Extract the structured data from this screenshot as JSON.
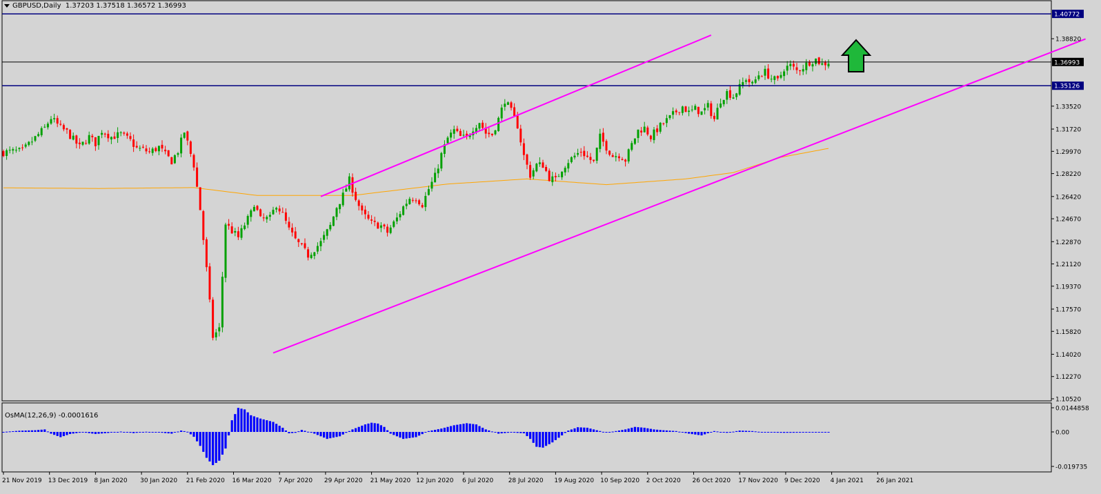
{
  "header": {
    "symbol": "GBPUSD,Daily",
    "ohlc": "1.37203 1.37518 1.36572 1.36993"
  },
  "colors": {
    "background": "#d4d4d4",
    "bull": "#00a000",
    "bear": "#ff0000",
    "ma": "#ffa500",
    "channel": "#ff00ff",
    "hline": "#000080",
    "price_line": "#000000",
    "osma": "#0000ff",
    "arrow_fill": "#1fb83a"
  },
  "chart_data": {
    "type": "line",
    "title": "GBPUSD,Daily",
    "price_axis": {
      "ticks": [
        "1.38820",
        "1.36993",
        "1.35126",
        "1.33520",
        "1.31720",
        "1.29970",
        "1.28220",
        "1.26420",
        "1.24670",
        "1.22870",
        "1.21120",
        "1.19370",
        "1.17570",
        "1.15820",
        "1.14020",
        "1.12270",
        "1.10520"
      ],
      "ylim": [
        1.1052,
        1.4105
      ]
    },
    "time_axis": {
      "labels": [
        "21 Nov 2019",
        "13 Dec 2019",
        "8 Jan 2020",
        "30 Jan 2020",
        "21 Feb 2020",
        "16 Mar 2020",
        "7 Apr 2020",
        "29 Apr 2020",
        "21 May 2020",
        "12 Jun 2020",
        "6 Jul 2020",
        "28 Jul 2020",
        "19 Aug 2020",
        "10 Sep 2020",
        "2 Oct 2020",
        "26 Oct 2020",
        "17 Nov 2020",
        "9 Dec 2020",
        "4 Jan 2021",
        "26 Jan 2021"
      ]
    },
    "horizontal_levels": [
      {
        "value": 1.40772,
        "label": "1.40772",
        "kind": "resistance"
      },
      {
        "value": 1.36993,
        "label": "1.36993",
        "kind": "current"
      },
      {
        "value": 1.35126,
        "label": "1.35126",
        "kind": "support"
      }
    ],
    "price_anchors": [
      [
        0,
        1.299
      ],
      [
        6,
        1.3
      ],
      [
        13,
        1.318
      ],
      [
        15,
        1.326
      ],
      [
        18,
        1.318
      ],
      [
        20,
        1.315
      ],
      [
        24,
        1.303
      ],
      [
        27,
        1.311
      ],
      [
        29,
        1.306
      ],
      [
        31,
        1.316
      ],
      [
        34,
        1.311
      ],
      [
        37,
        1.313
      ],
      [
        40,
        1.308
      ],
      [
        42,
        1.302
      ],
      [
        44,
        1.301
      ],
      [
        46,
        1.299
      ],
      [
        49,
        1.303
      ],
      [
        51,
        1.297
      ],
      [
        53,
        1.292
      ],
      [
        55,
        1.3
      ],
      [
        57,
        1.315
      ],
      [
        60,
        1.289
      ],
      [
        62,
        1.254
      ],
      [
        64,
        1.207
      ],
      [
        66,
        1.154
      ],
      [
        68,
        1.16
      ],
      [
        70,
        1.243
      ],
      [
        72,
        1.237
      ],
      [
        74,
        1.232
      ],
      [
        76,
        1.242
      ],
      [
        78,
        1.251
      ],
      [
        79,
        1.259
      ],
      [
        81,
        1.246
      ],
      [
        84,
        1.247
      ],
      [
        86,
        1.258
      ],
      [
        88,
        1.25
      ],
      [
        90,
        1.238
      ],
      [
        92,
        1.23
      ],
      [
        94,
        1.224
      ],
      [
        96,
        1.218
      ],
      [
        98,
        1.223
      ],
      [
        100,
        1.228
      ],
      [
        103,
        1.241
      ],
      [
        105,
        1.256
      ],
      [
        107,
        1.265
      ],
      [
        109,
        1.277
      ],
      [
        111,
        1.263
      ],
      [
        113,
        1.251
      ],
      [
        116,
        1.243
      ],
      [
        119,
        1.241
      ],
      [
        121,
        1.236
      ],
      [
        124,
        1.247
      ],
      [
        126,
        1.256
      ],
      [
        128,
        1.263
      ],
      [
        130,
        1.263
      ],
      [
        132,
        1.258
      ],
      [
        134,
        1.27
      ],
      [
        136,
        1.28
      ],
      [
        138,
        1.297
      ],
      [
        140,
        1.31
      ],
      [
        142,
        1.316
      ],
      [
        144,
        1.311
      ],
      [
        146,
        1.31
      ],
      [
        148,
        1.318
      ],
      [
        150,
        1.323
      ],
      [
        152,
        1.314
      ],
      [
        154,
        1.313
      ],
      [
        156,
        1.325
      ],
      [
        158,
        1.34
      ],
      [
        160,
        1.331
      ],
      [
        162,
        1.32
      ],
      [
        164,
        1.296
      ],
      [
        166,
        1.281
      ],
      [
        168,
        1.289
      ],
      [
        170,
        1.289
      ],
      [
        172,
        1.279
      ],
      [
        174,
        1.277
      ],
      [
        176,
        1.286
      ],
      [
        178,
        1.292
      ],
      [
        180,
        1.296
      ],
      [
        182,
        1.3
      ],
      [
        184,
        1.295
      ],
      [
        186,
        1.291
      ],
      [
        188,
        1.311
      ],
      [
        190,
        1.303
      ],
      [
        192,
        1.296
      ],
      [
        194,
        1.297
      ],
      [
        196,
        1.293
      ],
      [
        198,
        1.305
      ],
      [
        200,
        1.316
      ],
      [
        202,
        1.318
      ],
      [
        204,
        1.311
      ],
      [
        206,
        1.317
      ],
      [
        208,
        1.322
      ],
      [
        210,
        1.326
      ],
      [
        212,
        1.331
      ],
      [
        214,
        1.335
      ],
      [
        216,
        1.33
      ],
      [
        218,
        1.333
      ],
      [
        220,
        1.33
      ],
      [
        222,
        1.335
      ],
      [
        224,
        1.325
      ],
      [
        226,
        1.34
      ],
      [
        228,
        1.346
      ],
      [
        230,
        1.343
      ],
      [
        232,
        1.35
      ],
      [
        234,
        1.357
      ],
      [
        236,
        1.352
      ],
      [
        238,
        1.36
      ],
      [
        240,
        1.362
      ],
      [
        242,
        1.357
      ],
      [
        244,
        1.355
      ],
      [
        246,
        1.365
      ],
      [
        248,
        1.367
      ],
      [
        250,
        1.363
      ],
      [
        252,
        1.366
      ],
      [
        254,
        1.37
      ],
      [
        256,
        1.372
      ],
      [
        258,
        1.368
      ],
      [
        260,
        1.37
      ]
    ],
    "ma_anchors": [
      [
        0,
        1.271
      ],
      [
        30,
        1.2705
      ],
      [
        60,
        1.2712
      ],
      [
        80,
        1.265
      ],
      [
        110,
        1.265
      ],
      [
        140,
        1.274
      ],
      [
        165,
        1.278
      ],
      [
        190,
        1.2735
      ],
      [
        215,
        1.278
      ],
      [
        230,
        1.283
      ],
      [
        245,
        1.295
      ],
      [
        260,
        1.302
      ]
    ],
    "channel": {
      "upper": {
        "from": [
          "2020-04-09",
          1.2642
        ],
        "to": [
          "2020-09-28",
          1.391
        ]
      },
      "lower": {
        "from": [
          "2020-03-19",
          1.1412
        ],
        "to": [
          "2021-03-12",
          1.388
        ]
      }
    },
    "annotation": {
      "type": "up-arrow",
      "color": "#1fb83a"
    },
    "indicator": {
      "name": "OsMA(12,26,9)",
      "value": "-0.0001616",
      "ticks": [
        "0.0144858",
        "0.00",
        "-0.019735"
      ],
      "ylim": [
        -0.019735,
        0.0144858
      ],
      "anchors": [
        [
          0,
          0.0
        ],
        [
          5,
          0.0007
        ],
        [
          10,
          0.001
        ],
        [
          13,
          0.0015
        ],
        [
          15,
          -0.001
        ],
        [
          18,
          -0.003
        ],
        [
          21,
          -0.0012
        ],
        [
          25,
          -0.0002
        ],
        [
          29,
          -0.0012
        ],
        [
          33,
          -0.0006
        ],
        [
          37,
          0.0002
        ],
        [
          41,
          -0.0007
        ],
        [
          45,
          0.0001
        ],
        [
          49,
          -0.0003
        ],
        [
          53,
          -0.001
        ],
        [
          56,
          0.0008
        ],
        [
          58,
          0.0001
        ],
        [
          60,
          -0.0028
        ],
        [
          62,
          -0.008
        ],
        [
          64,
          -0.0148
        ],
        [
          66,
          -0.019
        ],
        [
          68,
          -0.0165
        ],
        [
          70,
          -0.0095
        ],
        [
          71,
          -0.002
        ],
        [
          72,
          0.007
        ],
        [
          74,
          0.0144
        ],
        [
          76,
          0.0135
        ],
        [
          78,
          0.01
        ],
        [
          81,
          0.008
        ],
        [
          85,
          0.006
        ],
        [
          88,
          0.0025
        ],
        [
          90,
          -0.0008
        ],
        [
          92,
          -0.0005
        ],
        [
          94,
          0.0012
        ],
        [
          98,
          -0.001
        ],
        [
          102,
          -0.004
        ],
        [
          106,
          -0.0025
        ],
        [
          110,
          0.0015
        ],
        [
          114,
          0.0045
        ],
        [
          116,
          0.0055
        ],
        [
          118,
          0.005
        ],
        [
          120,
          0.003
        ],
        [
          122,
          -0.001
        ],
        [
          126,
          -0.004
        ],
        [
          130,
          -0.003
        ],
        [
          134,
          0.0005
        ],
        [
          138,
          0.002
        ],
        [
          142,
          0.004
        ],
        [
          146,
          0.0052
        ],
        [
          149,
          0.0045
        ],
        [
          152,
          0.0015
        ],
        [
          156,
          -0.001
        ],
        [
          160,
          -0.0003
        ],
        [
          164,
          -0.0008
        ],
        [
          166,
          -0.004
        ],
        [
          168,
          -0.0085
        ],
        [
          170,
          -0.009
        ],
        [
          173,
          -0.006
        ],
        [
          176,
          -0.002
        ],
        [
          178,
          0.0008
        ],
        [
          181,
          0.0028
        ],
        [
          184,
          0.0025
        ],
        [
          187,
          0.001
        ],
        [
          190,
          -0.0004
        ],
        [
          193,
          0.0005
        ],
        [
          196,
          0.0015
        ],
        [
          199,
          0.003
        ],
        [
          202,
          0.0025
        ],
        [
          205,
          0.0015
        ],
        [
          208,
          0.001
        ],
        [
          212,
          0.0005
        ],
        [
          216,
          -0.001
        ],
        [
          220,
          -0.002
        ],
        [
          224,
          0.0005
        ],
        [
          228,
          -0.0005
        ],
        [
          232,
          0.0008
        ],
        [
          236,
          0.0005
        ],
        [
          240,
          -0.0003
        ],
        [
          246,
          -0.0005
        ],
        [
          252,
          -0.0004
        ],
        [
          260,
          -0.0002
        ]
      ]
    }
  }
}
